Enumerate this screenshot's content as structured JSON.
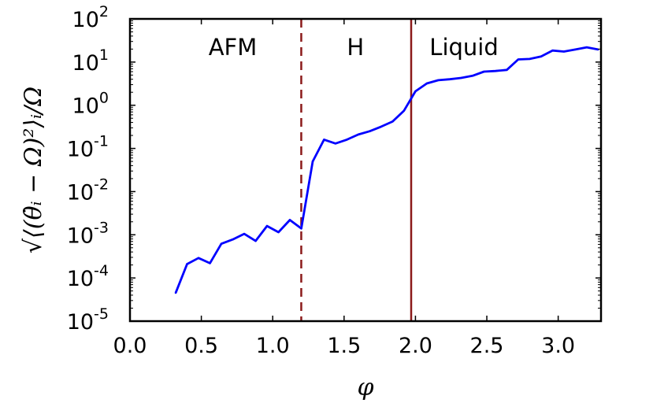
{
  "chart_data": {
    "type": "line",
    "xlabel": "φ",
    "ylabel": "√⟨(θ̇ᵢ − Ω)²⟩ᵢ/Ω",
    "xlim": [
      0.0,
      3.3
    ],
    "ylim_log10": [
      -5,
      2
    ],
    "y_scale": "log",
    "x_ticks": [
      "0.0",
      "0.5",
      "1.0",
      "1.5",
      "2.0",
      "2.5",
      "3.0"
    ],
    "x_tick_values": [
      0.0,
      0.5,
      1.0,
      1.5,
      2.0,
      2.5,
      3.0
    ],
    "y_ticks": [
      {
        "base": "10",
        "exp": "-5",
        "log": -5
      },
      {
        "base": "10",
        "exp": "-4",
        "log": -4
      },
      {
        "base": "10",
        "exp": "-3",
        "log": -3
      },
      {
        "base": "10",
        "exp": "-2",
        "log": -2
      },
      {
        "base": "10",
        "exp": "-1",
        "log": -1
      },
      {
        "base": "10",
        "exp": "0",
        "log": 0
      },
      {
        "base": "10",
        "exp": "1",
        "log": 1
      },
      {
        "base": "10",
        "exp": "2",
        "log": 2
      }
    ],
    "region_labels": [
      {
        "text": "AFM",
        "x": 0.72
      },
      {
        "text": "H",
        "x": 1.58
      },
      {
        "text": "Liquid",
        "x": 2.34
      }
    ],
    "vlines": [
      {
        "x": 1.2,
        "style": "dashed",
        "color": "#8b1a1a"
      },
      {
        "x": 1.97,
        "style": "solid",
        "color": "#8b1a1a"
      }
    ],
    "series": [
      {
        "color": "#0000ff",
        "x": [
          0.32,
          0.4,
          0.48,
          0.56,
          0.64,
          0.72,
          0.8,
          0.88,
          0.96,
          1.04,
          1.12,
          1.2,
          1.28,
          1.36,
          1.44,
          1.52,
          1.6,
          1.68,
          1.76,
          1.84,
          1.92,
          2.0,
          2.08,
          2.16,
          2.24,
          2.32,
          2.4,
          2.48,
          2.56,
          2.64,
          2.72,
          2.8,
          2.88,
          2.96,
          3.04,
          3.12,
          3.2,
          3.28
        ],
        "y": [
          4.5e-05,
          0.00021,
          0.00029,
          0.00022,
          0.00062,
          0.00078,
          0.00105,
          0.00072,
          0.0016,
          0.00115,
          0.0022,
          0.0014,
          0.05,
          0.16,
          0.13,
          0.16,
          0.21,
          0.25,
          0.32,
          0.42,
          0.75,
          2.1,
          3.2,
          3.8,
          4.0,
          4.3,
          4.8,
          6.0,
          6.2,
          6.6,
          11.5,
          11.8,
          13.5,
          18.5,
          17.5,
          19.5,
          22.0,
          19.5
        ]
      }
    ],
    "grid": false
  }
}
